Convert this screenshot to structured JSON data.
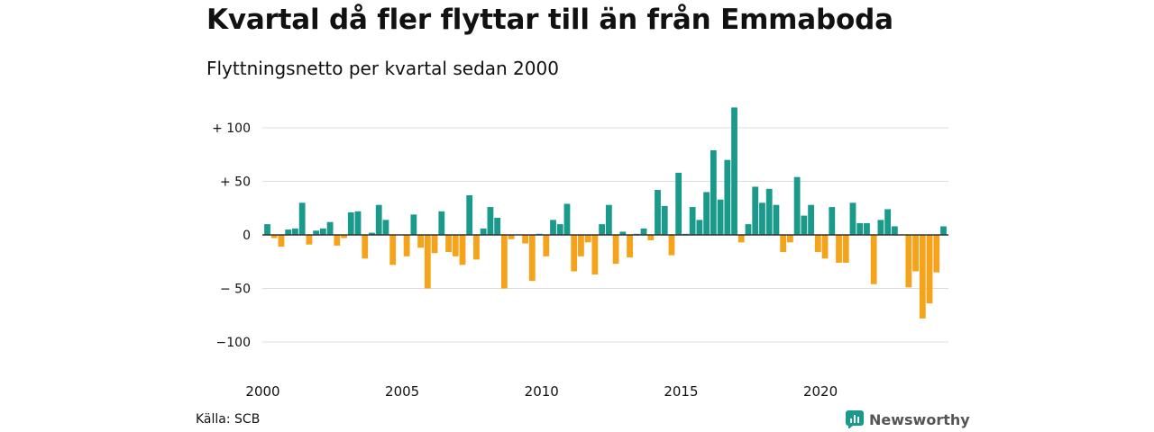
{
  "title": "Kvartal då fler flyttar till än från Emmaboda",
  "subtitle": "Flyttningsnetto per kvartal sedan 2000",
  "source": "Källa: SCB",
  "brand": {
    "name": "Newsworthy",
    "icon": "newsworthy-logo-icon",
    "color": "#1a9a8a"
  },
  "colors": {
    "positive": "#1a9a8a",
    "negative": "#f5a31a",
    "grid": "#dddddd",
    "zero_line": "#333333"
  },
  "chart_data": {
    "type": "bar",
    "title": "Kvartal då fler flyttar till än från Emmaboda",
    "subtitle": "Flyttningsnetto per kvartal sedan 2000",
    "x_start": "2000Q1",
    "quarters_per_year": 4,
    "ylim": [
      -115,
      120
    ],
    "y_ticks": [
      {
        "value": 100,
        "label": "+ 100"
      },
      {
        "value": 50,
        "label": "+  50"
      },
      {
        "value": 0,
        "label": "0"
      },
      {
        "value": -50,
        "label": "− 50"
      },
      {
        "value": -100,
        "label": "−100"
      }
    ],
    "x_ticks": [
      {
        "year": 2000,
        "label": "2000"
      },
      {
        "year": 2005,
        "label": "2005"
      },
      {
        "year": 2010,
        "label": "2010"
      },
      {
        "year": 2015,
        "label": "2015"
      },
      {
        "year": 2020,
        "label": "2020"
      }
    ],
    "values": [
      10,
      -3,
      -11,
      5,
      6,
      30,
      -9,
      4,
      6,
      12,
      -10,
      -3,
      21,
      22,
      -22,
      2,
      28,
      14,
      -28,
      0,
      -20,
      19,
      -12,
      -50,
      -17,
      22,
      -16,
      -20,
      -28,
      37,
      -23,
      6,
      26,
      16,
      -50,
      -4,
      0,
      -8,
      -43,
      1,
      -20,
      14,
      10,
      29,
      -34,
      -20,
      -7,
      -37,
      10,
      28,
      -27,
      3,
      -21,
      1,
      6,
      -5,
      42,
      27,
      -19,
      58,
      1,
      26,
      14,
      40,
      79,
      33,
      70,
      119,
      -7,
      10,
      45,
      30,
      43,
      28,
      -16,
      -7,
      54,
      18,
      28,
      -16,
      -22,
      26,
      -26,
      -26,
      30,
      11,
      11,
      -46,
      14,
      24,
      8,
      0,
      -49,
      -34,
      -78,
      -64,
      -35,
      8
    ]
  }
}
